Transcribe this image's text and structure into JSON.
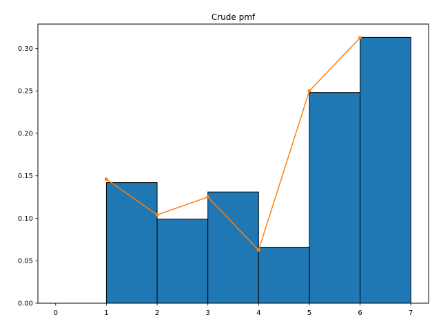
{
  "chart_data": {
    "type": "bar",
    "title": "Crude pmf",
    "xlabel": "",
    "ylabel": "",
    "xlim": [
      -0.35,
      7.35
    ],
    "ylim": [
      0,
      0.3287
    ],
    "x_ticks": [
      "0",
      "1",
      "2",
      "3",
      "4",
      "5",
      "6",
      "7"
    ],
    "y_ticks": [
      "0.00",
      "0.05",
      "0.10",
      "0.15",
      "0.20",
      "0.25",
      "0.30"
    ],
    "grid": false,
    "legend": "none",
    "bars": {
      "bin_edges": [
        0,
        1,
        2,
        3,
        4,
        5,
        6,
        7
      ],
      "values": [
        0.0,
        0.142,
        0.099,
        0.131,
        0.066,
        0.248,
        0.313
      ],
      "color": "#1f77b4",
      "edgecolor": "#000000"
    },
    "line": {
      "x": [
        1,
        2,
        3,
        4,
        5,
        6
      ],
      "y": [
        0.146,
        0.104,
        0.125,
        0.0625,
        0.25,
        0.3125
      ],
      "color": "#ff7f0e"
    }
  }
}
